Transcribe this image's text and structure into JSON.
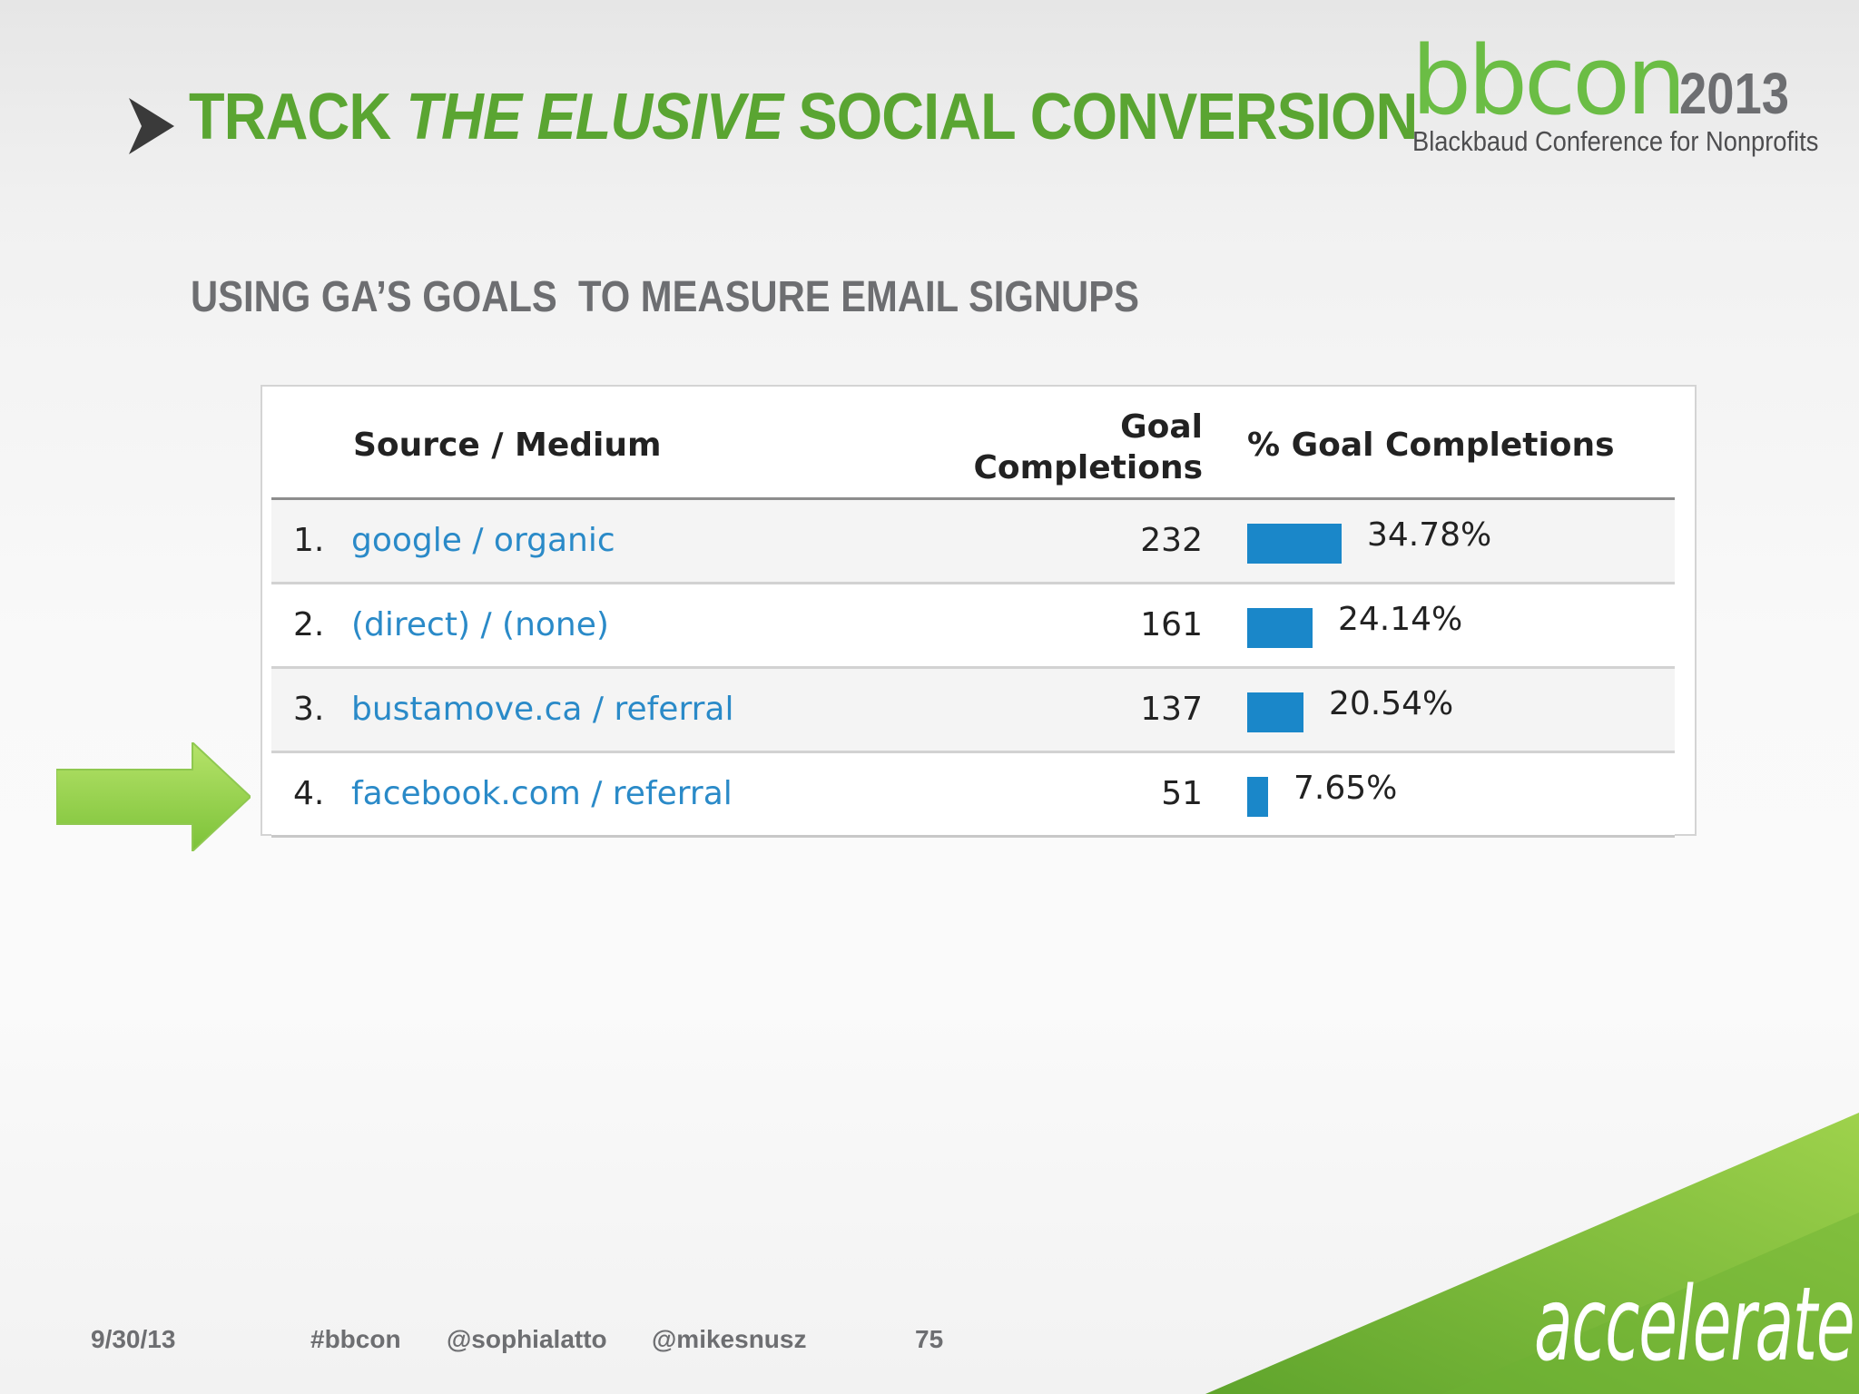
{
  "header": {
    "title_part1": "TRACK ",
    "title_emphasis": "THE ELUSIVE",
    "title_part2": " SOCIAL CONVERSION",
    "logo_word": "bbcon",
    "logo_year": "2013",
    "logo_subtitle": "Blackbaud Conference for Nonprofits"
  },
  "subtitle": "USING GA’S GOALS  TO MEASURE EMAIL SIGNUPS",
  "table": {
    "columns": [
      "Source / Medium",
      "Goal",
      "Completions",
      "% Goal Completions"
    ],
    "rows": [
      {
        "rank": "1.",
        "source": "google / organic",
        "completions": "232",
        "percent": "34.78%",
        "share": 34.78
      },
      {
        "rank": "2.",
        "source": "(direct) / (none)",
        "completions": "161",
        "percent": "24.14%",
        "share": 24.14
      },
      {
        "rank": "3.",
        "source": "bustamove.ca / referral",
        "completions": "137",
        "percent": "20.54%",
        "share": 20.54
      },
      {
        "rank": "4.",
        "source": "facebook.com / referral",
        "completions": "51",
        "percent": "7.65%",
        "share": 7.65
      }
    ]
  },
  "footer": {
    "date": "9/30/13",
    "hashtag": "#bbcon",
    "handle1": "@sophialatto",
    "handle2": "@mikesnusz",
    "page": "75"
  },
  "corner_word": "accelerate",
  "colors": {
    "title_green": "#5aa532",
    "link_blue": "#2a8ac8",
    "bar_blue": "#1a87c9",
    "footer_gray": "#6d6e71"
  },
  "icons": [
    "chevron-right-icon",
    "right-arrow-icon"
  ]
}
